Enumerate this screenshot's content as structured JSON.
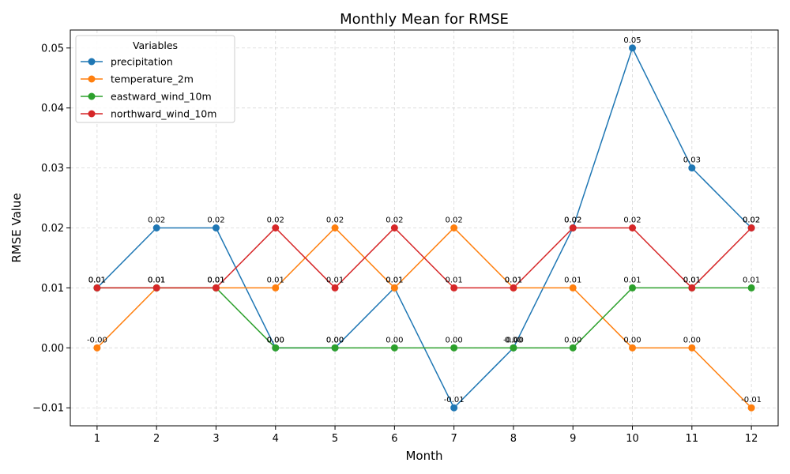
{
  "chart_data": {
    "type": "line",
    "title": "Monthly Mean for RMSE",
    "xlabel": "Month",
    "ylabel": "RMSE Value",
    "x": [
      1,
      2,
      3,
      4,
      5,
      6,
      7,
      8,
      9,
      10,
      11,
      12
    ],
    "x_ticks": [
      "1",
      "2",
      "3",
      "4",
      "5",
      "6",
      "7",
      "8",
      "9",
      "10",
      "11",
      "12"
    ],
    "y_ticks": [
      "−0.01",
      "0.00",
      "0.01",
      "0.02",
      "0.03",
      "0.04",
      "0.05"
    ],
    "y_tick_values": [
      -0.01,
      0.0,
      0.01,
      0.02,
      0.03,
      0.04,
      0.05
    ],
    "xlim": [
      0.55,
      12.45
    ],
    "ylim": [
      -0.013,
      0.053
    ],
    "grid": true,
    "legend": {
      "title": "Variables",
      "placement": "top-left"
    },
    "series": [
      {
        "name": "precipitation",
        "color": "#1f77b4",
        "values": [
          0.01,
          0.02,
          0.02,
          0.0,
          0.0,
          0.01,
          -0.01,
          0.0,
          0.02,
          0.05,
          0.03,
          0.02
        ],
        "labels": [
          "0.01",
          "0.02",
          "0.02",
          "0.00",
          "0.00",
          "0.01",
          "-0.01",
          "0.00",
          "0.02",
          "0.05",
          "0.03",
          "0.02"
        ]
      },
      {
        "name": "temperature_2m",
        "color": "#ff7f0e",
        "values": [
          0.0,
          0.01,
          0.01,
          0.01,
          0.02,
          0.01,
          0.02,
          0.01,
          0.01,
          0.0,
          0.0,
          -0.01
        ],
        "labels": [
          "-0.00",
          "0.01",
          "0.01",
          "0.01",
          "0.02",
          "0.01",
          "0.02",
          "0.01",
          "0.01",
          "0.00",
          "0.00",
          "-0.01"
        ]
      },
      {
        "name": "eastward_wind_10m",
        "color": "#2ca02c",
        "values": [
          0.01,
          0.01,
          0.01,
          0.0,
          0.0,
          0.0,
          0.0,
          0.0,
          0.0,
          0.01,
          0.01,
          0.01
        ],
        "labels": [
          "0.01",
          "0.01",
          "0.01",
          "0.00",
          "0.00",
          "0.00",
          "0.00",
          "-0.00",
          "0.00",
          "0.01",
          "0.01",
          "0.01"
        ]
      },
      {
        "name": "northward_wind_10m",
        "color": "#d62728",
        "values": [
          0.01,
          0.01,
          0.01,
          0.02,
          0.01,
          0.02,
          0.01,
          0.01,
          0.02,
          0.02,
          0.01,
          0.02
        ],
        "labels": [
          "0.01",
          "0.01",
          "0.01",
          "0.02",
          "0.01",
          "0.02",
          "0.01",
          "0.01",
          "0.02",
          "0.02",
          "0.01",
          "0.02"
        ]
      }
    ]
  }
}
